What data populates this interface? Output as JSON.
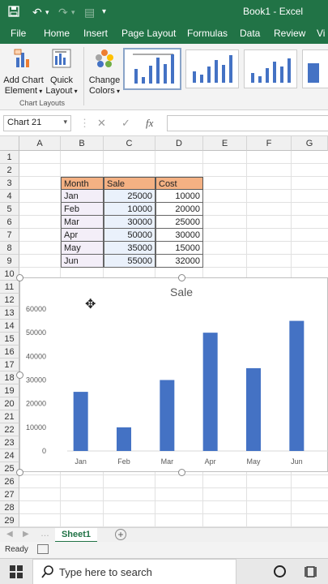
{
  "window": {
    "title": "Book1 - Excel"
  },
  "ribbon_tabs": [
    "File",
    "Home",
    "Insert",
    "Page Layout",
    "Formulas",
    "Data",
    "Review",
    "Vi"
  ],
  "ribbon": {
    "add_chart_element": "Add Chart Element",
    "quick_layout": "Quick Layout",
    "change_colors": "Change Colors",
    "group_label": "Chart Layouts"
  },
  "formula_bar": {
    "name_box": "Chart 21",
    "fx": "fx"
  },
  "columns": [
    "A",
    "B",
    "C",
    "D",
    "E",
    "F",
    "G"
  ],
  "rows": [
    "1",
    "2",
    "3",
    "4",
    "5",
    "6",
    "7",
    "8",
    "9",
    "10",
    "11",
    "12",
    "13",
    "14",
    "15",
    "16",
    "17",
    "18",
    "19",
    "20",
    "21",
    "22",
    "23",
    "24",
    "25",
    "26",
    "27",
    "28",
    "29"
  ],
  "table": {
    "headers": [
      "Month",
      "Sale",
      "Cost"
    ],
    "rows": [
      [
        "Jan",
        "25000",
        "10000"
      ],
      [
        "Feb",
        "10000",
        "20000"
      ],
      [
        "Mar",
        "30000",
        "25000"
      ],
      [
        "Apr",
        "50000",
        "30000"
      ],
      [
        "May",
        "35000",
        "15000"
      ],
      [
        "Jun",
        "55000",
        "32000"
      ]
    ]
  },
  "chart_data": {
    "type": "bar",
    "title": "Sale",
    "categories": [
      "Jan",
      "Feb",
      "Mar",
      "Apr",
      "May",
      "Jun"
    ],
    "values": [
      25000,
      10000,
      30000,
      50000,
      35000,
      55000
    ],
    "yticks": [
      "0",
      "10000",
      "20000",
      "30000",
      "40000",
      "50000",
      "60000"
    ],
    "ylim": [
      0,
      60000
    ],
    "grid": false,
    "legend": "none",
    "bar_color": "#4472c4"
  },
  "sheet_tabs": [
    "Sheet1"
  ],
  "status": {
    "ready": "Ready"
  },
  "taskbar": {
    "search_placeholder": "Type here to search"
  },
  "colors": {
    "excel_green": "#217346",
    "header_fill": "#f4b183"
  }
}
